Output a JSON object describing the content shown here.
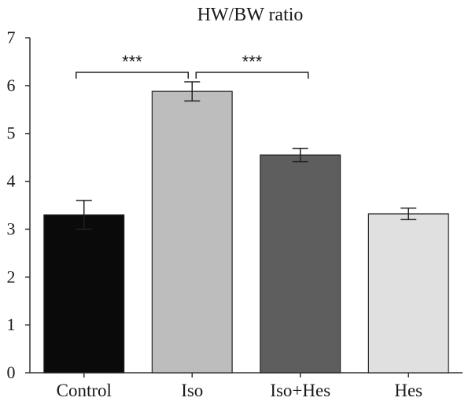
{
  "chart_data": {
    "type": "bar",
    "title": "HW/BW ratio",
    "xlabel": "",
    "ylabel": "",
    "categories": [
      "Control",
      "Iso",
      "Iso+Hes",
      "Hes"
    ],
    "values": [
      3.3,
      5.88,
      4.55,
      3.32
    ],
    "errors": [
      0.3,
      0.2,
      0.14,
      0.12
    ],
    "colors": [
      "#0a0a0a",
      "#bdbdbd",
      "#5e5e5e",
      "#e0e0e0"
    ],
    "ylim": [
      0,
      7
    ],
    "yticks": [
      0,
      1,
      2,
      3,
      4,
      5,
      6,
      7
    ],
    "grid": false,
    "legend": "none",
    "significance": [
      {
        "from": 0,
        "to": 1,
        "label": "***"
      },
      {
        "from": 1,
        "to": 2,
        "label": "***"
      }
    ]
  }
}
